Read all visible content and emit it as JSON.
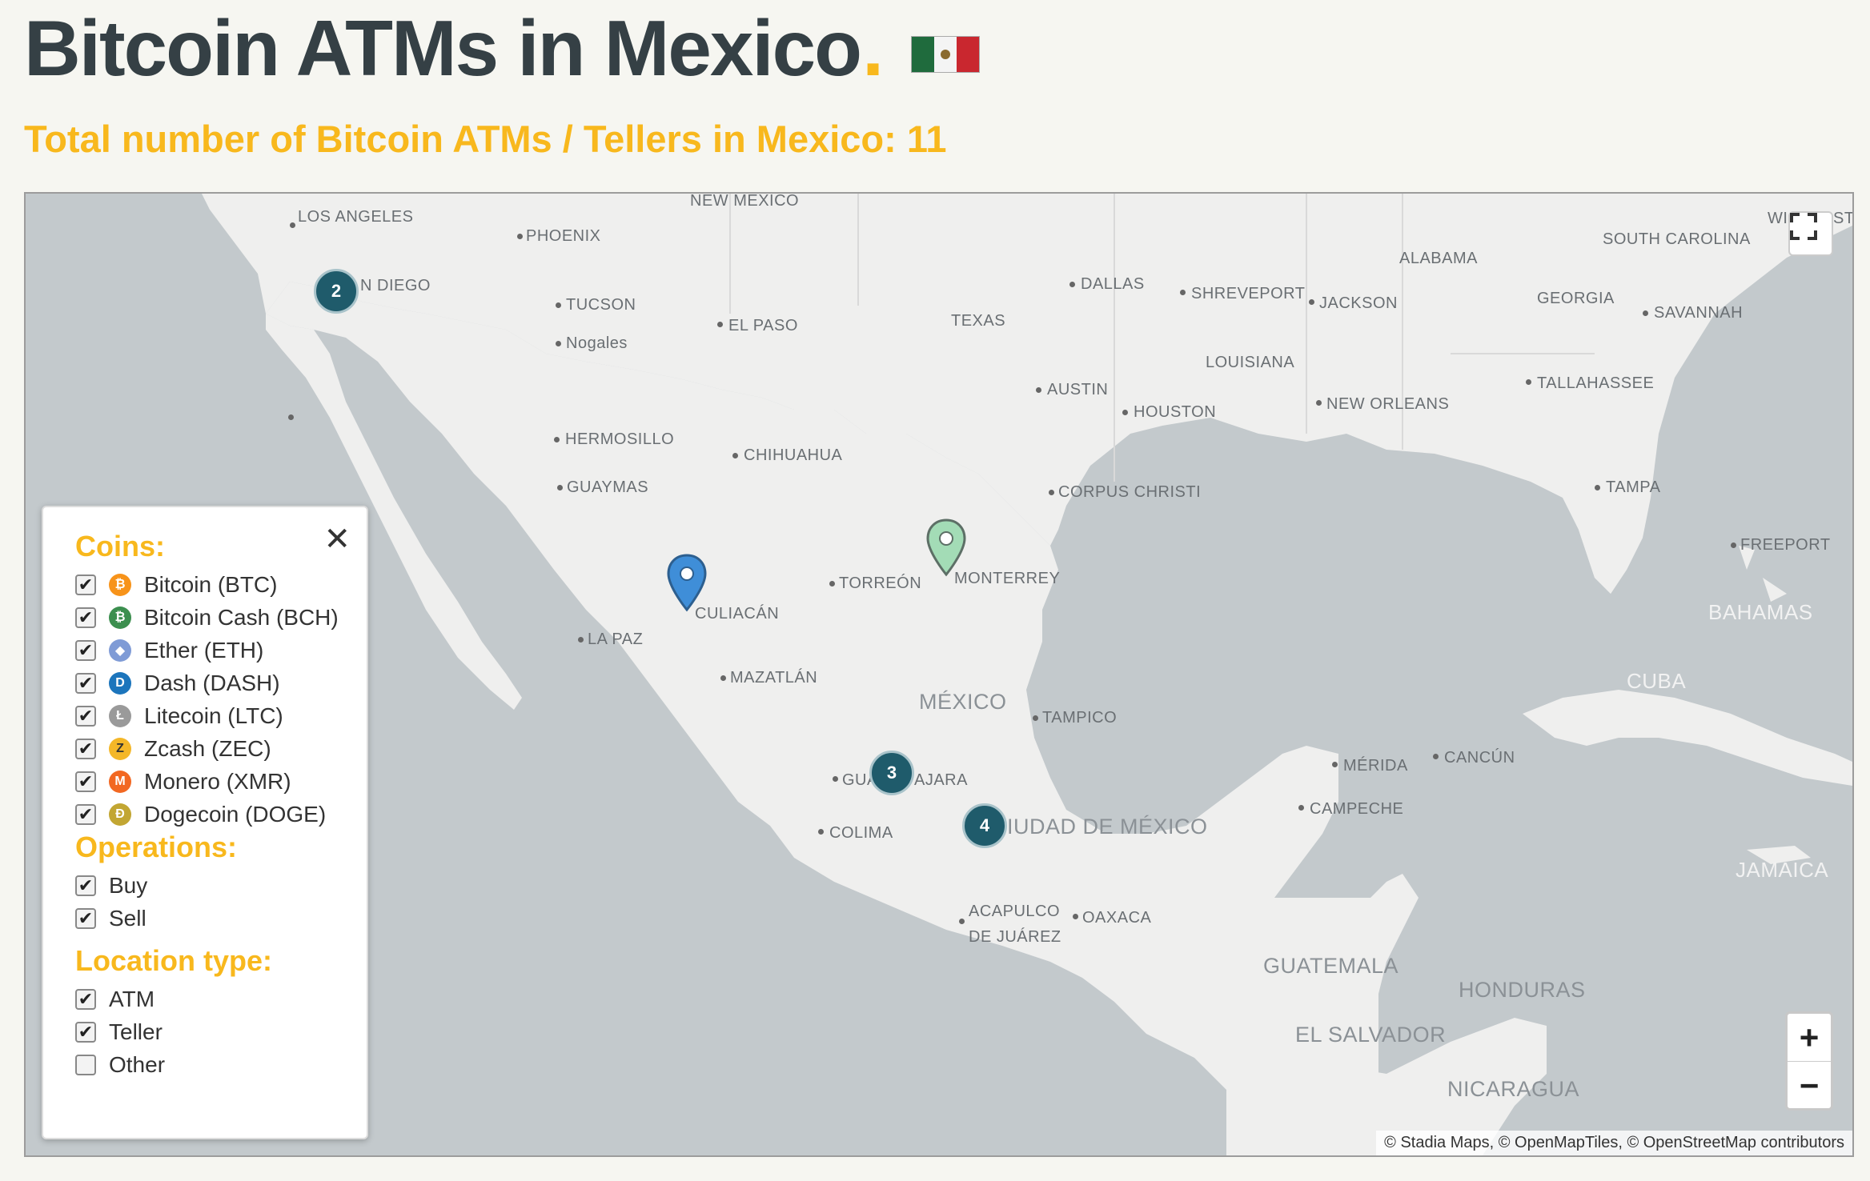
{
  "page": {
    "title": "Bitcoin ATMs in Mexico",
    "title_dot": ".",
    "flag_icon": "mexico-flag-icon",
    "subtitle": "Total number of Bitcoin ATMs / Tellers in Mexico: 11"
  },
  "map": {
    "cities": [
      {
        "name": "LOS ANGELES"
      },
      {
        "name": "PHOENIX"
      },
      {
        "name": "N DIEGO"
      },
      {
        "name": "TUCSON"
      },
      {
        "name": "Nogales"
      },
      {
        "name": "EL PASO"
      },
      {
        "name": "DALLAS"
      },
      {
        "name": "SHREVEPORT"
      },
      {
        "name": "JACKSON"
      },
      {
        "name": "AUSTIN"
      },
      {
        "name": "HOUSTON"
      },
      {
        "name": "NEW ORLEANS"
      },
      {
        "name": "TALLAHASSEE"
      },
      {
        "name": "SAVANNAH"
      },
      {
        "name": "TAMPA"
      },
      {
        "name": "FREEPORT"
      },
      {
        "name": "CORPUS CHRISTI"
      },
      {
        "name": "HERMOSILLO"
      },
      {
        "name": "CHIHUAHUA"
      },
      {
        "name": "GUAYMAS"
      },
      {
        "name": "TORREÓN"
      },
      {
        "name": "MONTERREY"
      },
      {
        "name": "CULIACÁN"
      },
      {
        "name": "LA PAZ"
      },
      {
        "name": "MAZATLÁN"
      },
      {
        "name": "TAMPICO"
      },
      {
        "name": "GUA"
      },
      {
        "name": "AJARA"
      },
      {
        "name": "COLIMA"
      },
      {
        "name": "CIUDAD DE MÉXICO"
      },
      {
        "name": "ACAPULCO"
      },
      {
        "name": "DE JUÁREZ"
      },
      {
        "name": "OAXACA"
      },
      {
        "name": "MÉRIDA"
      },
      {
        "name": "CANCÚN"
      },
      {
        "name": "CAMPECHE"
      }
    ],
    "regions": [
      {
        "name": "NEW MEXICO"
      },
      {
        "name": "TEXAS"
      },
      {
        "name": "ALABAMA"
      },
      {
        "name": "GEORGIA"
      },
      {
        "name": "SOUTH CAROLINA"
      },
      {
        "name": "LOUISIANA"
      },
      {
        "name": "WI"
      },
      {
        "name": "ST"
      }
    ],
    "countries": [
      {
        "name": "MÉXICO"
      },
      {
        "name": "BAHAMAS"
      },
      {
        "name": "CUBA"
      },
      {
        "name": "JAMAICA"
      },
      {
        "name": "GUATEMALA"
      },
      {
        "name": "HONDURAS"
      },
      {
        "name": "EL SALVADOR"
      },
      {
        "name": "NICARAGUA"
      }
    ],
    "clusters": [
      {
        "count": "2"
      },
      {
        "count": "3"
      },
      {
        "count": "4"
      }
    ],
    "pins": [
      {
        "color": "#3f8ed8",
        "icon": "map-pin-icon"
      },
      {
        "color": "#a3dcb6",
        "icon": "map-pin-icon"
      }
    ],
    "zoom_in": "+",
    "zoom_out": "−",
    "fullscreen_icon": "fullscreen-icon",
    "attribution": "© Stadia Maps, © OpenMapTiles, © OpenStreetMap contributors"
  },
  "filters": {
    "close_icon": "close-icon",
    "close": "✕",
    "coins_heading": "Coins:",
    "coins": [
      {
        "label": "Bitcoin (BTC)",
        "checked": true,
        "color": "#f7931a",
        "glyph": "₿",
        "icon": "bitcoin-icon"
      },
      {
        "label": "Bitcoin Cash (BCH)",
        "checked": true,
        "color": "#3c8f4f",
        "glyph": "₿",
        "icon": "bitcoin-cash-icon"
      },
      {
        "label": "Ether (ETH)",
        "checked": true,
        "color": "#7f9bd6",
        "glyph": "◆",
        "icon": "ether-icon"
      },
      {
        "label": "Dash (DASH)",
        "checked": true,
        "color": "#1c75bc",
        "glyph": "D",
        "icon": "dash-icon"
      },
      {
        "label": "Litecoin (LTC)",
        "checked": true,
        "color": "#9a9a9a",
        "glyph": "Ł",
        "icon": "litecoin-icon"
      },
      {
        "label": "Zcash (ZEC)",
        "checked": true,
        "color": "#f4b728",
        "glyph": "Z",
        "icon": "zcash-icon"
      },
      {
        "label": "Monero (XMR)",
        "checked": true,
        "color": "#f26822",
        "glyph": "M",
        "icon": "monero-icon"
      },
      {
        "label": "Dogecoin (DOGE)",
        "checked": true,
        "color": "#c2a633",
        "glyph": "Ð",
        "icon": "dogecoin-icon"
      }
    ],
    "operations_heading": "Operations:",
    "operations": [
      {
        "label": "Buy",
        "checked": true
      },
      {
        "label": "Sell",
        "checked": true
      }
    ],
    "location_heading": "Location type:",
    "location_types": [
      {
        "label": "ATM",
        "checked": true
      },
      {
        "label": "Teller",
        "checked": true
      },
      {
        "label": "Other",
        "checked": false
      }
    ]
  }
}
